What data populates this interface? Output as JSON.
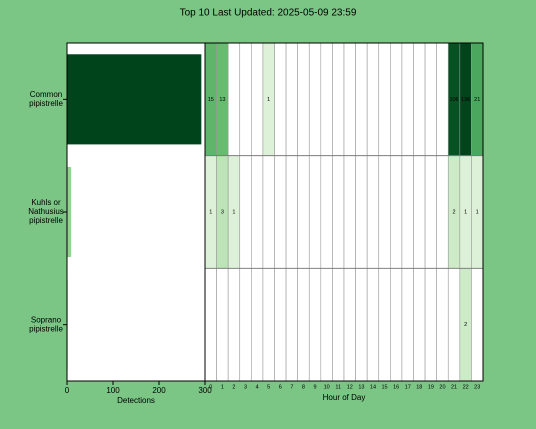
{
  "chart_data": [
    {
      "type": "bar",
      "orientation": "horizontal",
      "title": "Top 10 Last Updated: 2025-05-09 23:59",
      "categories": [
        [
          "Common",
          "pipistrelle"
        ],
        [
          "Kuhls or",
          "Nathusius",
          "pipistrelle"
        ],
        [
          "Soprano",
          "pipistrelle"
        ]
      ],
      "values": [
        292,
        9,
        2
      ],
      "xlim": [
        0,
        300
      ],
      "xticks": [
        0,
        100,
        200,
        300
      ],
      "xlabel": "Detections",
      "color_scale": "log",
      "colors": [
        "#f7fcf5",
        "#c7e9c0",
        "#74c476",
        "#238b45",
        "#00441b"
      ]
    },
    {
      "type": "heatmap",
      "x": [
        0,
        1,
        2,
        3,
        4,
        5,
        6,
        7,
        8,
        9,
        10,
        11,
        12,
        13,
        14,
        15,
        16,
        17,
        18,
        19,
        20,
        21,
        22,
        23
      ],
      "xlabel": "Hour of Day",
      "values": [
        [
          15,
          13,
          null,
          null,
          null,
          1,
          null,
          null,
          null,
          null,
          null,
          null,
          null,
          null,
          null,
          null,
          null,
          null,
          null,
          null,
          null,
          106,
          136,
          21
        ],
        [
          1,
          3,
          1,
          null,
          null,
          null,
          null,
          null,
          null,
          null,
          null,
          null,
          null,
          null,
          null,
          null,
          null,
          null,
          null,
          null,
          null,
          2,
          1,
          1
        ],
        [
          null,
          null,
          null,
          null,
          null,
          null,
          null,
          null,
          null,
          null,
          null,
          null,
          null,
          null,
          null,
          null,
          null,
          null,
          null,
          null,
          null,
          null,
          2,
          null
        ]
      ],
      "highlight_hour": 23,
      "highlight_color": "#ffff66",
      "color_scale": "log",
      "colors": [
        "#f7fcf5",
        "#c7e9c0",
        "#74c476",
        "#238b45",
        "#00441b"
      ]
    }
  ]
}
